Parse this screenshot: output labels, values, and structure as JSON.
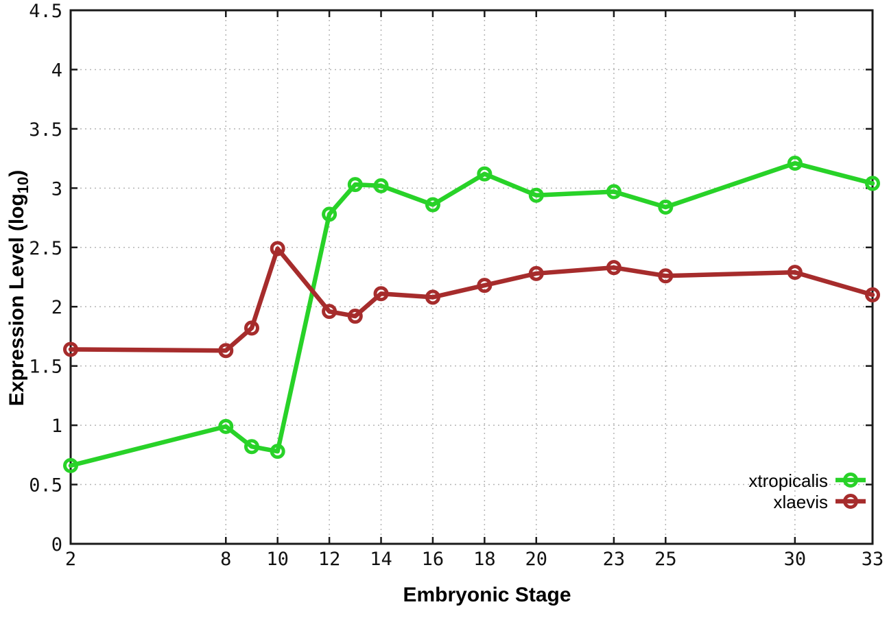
{
  "chart_data": {
    "type": "line",
    "title": "",
    "xlabel": "Embryonic Stage",
    "ylabel": "Expression Level (log10)",
    "ylabel_parts": {
      "main": "Expression Level (log",
      "sub": "10",
      "close": ")"
    },
    "xlim": [
      2,
      33
    ],
    "ylim": [
      0,
      4.5
    ],
    "grid": true,
    "x": [
      2,
      8,
      9,
      10,
      12,
      13,
      14,
      16,
      18,
      20,
      23,
      25,
      30,
      33
    ],
    "series": [
      {
        "name": "xtropicalis",
        "color": "#28d228",
        "values": [
          0.66,
          0.99,
          0.82,
          0.78,
          2.78,
          3.03,
          3.02,
          2.86,
          3.12,
          2.94,
          2.97,
          2.84,
          3.21,
          3.04
        ]
      },
      {
        "name": "xlaevis",
        "color": "#a62c2c",
        "values": [
          1.64,
          1.63,
          1.82,
          2.49,
          1.96,
          1.92,
          2.11,
          2.08,
          2.18,
          2.28,
          2.33,
          2.26,
          2.29,
          2.1
        ]
      }
    ],
    "x_ticks": [
      2,
      8,
      10,
      12,
      14,
      16,
      18,
      20,
      23,
      25,
      30,
      33
    ],
    "x_tick_labels": [
      "2",
      "8",
      "10",
      "12",
      "14",
      "16",
      "18",
      "20",
      "23",
      "25",
      "30",
      "33"
    ],
    "y_ticks": [
      0,
      0.5,
      1,
      1.5,
      2,
      2.5,
      3,
      3.5,
      4,
      4.5
    ],
    "y_tick_labels": [
      "0",
      "0.5",
      "1",
      "1.5",
      "2",
      "2.5",
      "3",
      "3.5",
      "4",
      "4.5"
    ],
    "legend_position": "bottom-right",
    "colors": {
      "background": "#ffffff",
      "axis": "#1a1a1a",
      "grid": "#b4b4b4",
      "xtropicalis": "#28d228",
      "xlaevis": "#a62c2c"
    },
    "marker": "open-circle"
  }
}
